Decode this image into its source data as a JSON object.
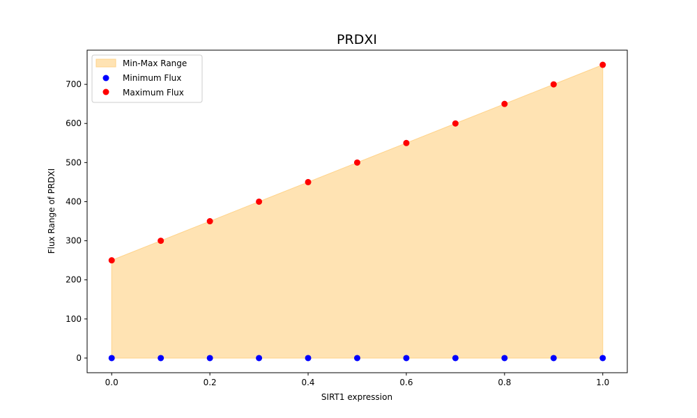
{
  "chart_data": {
    "type": "scatter",
    "title": "PRDXI",
    "xlabel": "SIRT1 expression",
    "ylabel": "Flux Range of PRDXI",
    "xlim": [
      -0.05,
      1.05
    ],
    "ylim": [
      -37.5,
      787.5
    ],
    "xticks": [
      0.0,
      0.2,
      0.4,
      0.6,
      0.8,
      1.0
    ],
    "xtick_labels": [
      "0.0",
      "0.2",
      "0.4",
      "0.6",
      "0.8",
      "1.0"
    ],
    "yticks": [
      0,
      100,
      200,
      300,
      400,
      500,
      600,
      700
    ],
    "ytick_labels": [
      "0",
      "100",
      "200",
      "300",
      "400",
      "500",
      "600",
      "700"
    ],
    "grid": false,
    "legend_position": "top-left",
    "x": [
      0.0,
      0.1,
      0.2,
      0.3,
      0.4,
      0.5,
      0.6,
      0.7,
      0.8,
      0.9,
      1.0
    ],
    "fill": {
      "name": "Min-Max Range",
      "color": "#ffe3b3",
      "edge_color": "#ffd38a"
    },
    "series": [
      {
        "name": "Minimum Flux",
        "color": "#0000ff",
        "values": [
          0,
          0,
          0,
          0,
          0,
          0,
          0,
          0,
          0,
          0,
          0
        ]
      },
      {
        "name": "Maximum Flux",
        "color": "#ff0000",
        "values": [
          250,
          300,
          350,
          400,
          450,
          500,
          550,
          600,
          650,
          700,
          750
        ]
      }
    ]
  }
}
